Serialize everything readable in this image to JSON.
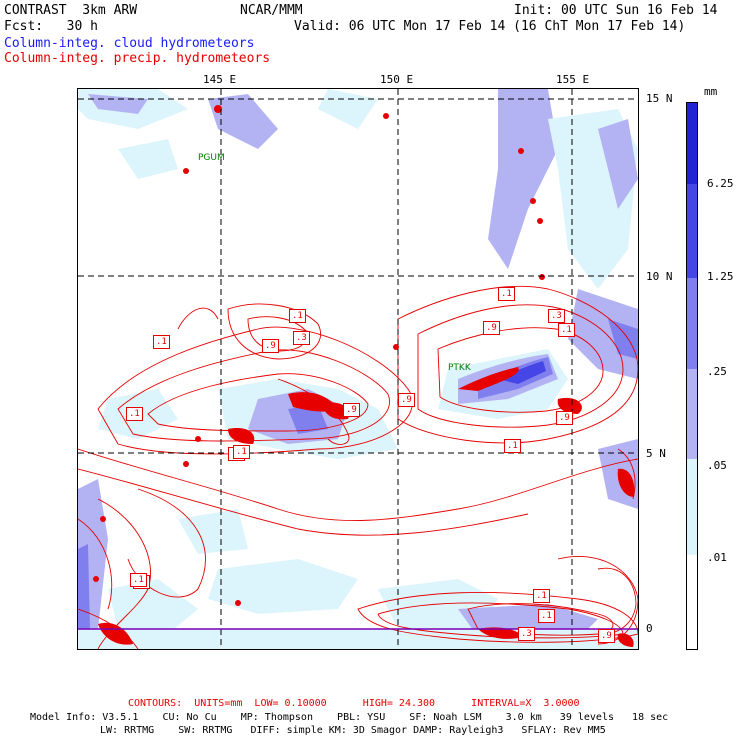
{
  "header": {
    "left_line1": "CONTRAST  3km ARW",
    "center_line1": "NCAR/MMM",
    "right_line1": "Init: 00 UTC Sun 16 Feb 14",
    "left_line2": "Fcst:   30 h",
    "right_line2": "Valid: 06 UTC Mon 17 Feb 14 (16 ChT Mon 17 Feb 14)",
    "field1": "Column-integ. cloud hydrometeors",
    "field2": "Column-integ. precip. hydrometeors"
  },
  "axes": {
    "lon_labels": [
      "145 E",
      "150 E",
      "155 E"
    ],
    "lat_labels": [
      "15 N",
      "10 N",
      "5 N",
      "0"
    ]
  },
  "colorbar": {
    "unit": "mm",
    "labels": [
      "6.25",
      "1.25",
      ".25",
      ".05",
      ".01"
    ],
    "colors": [
      "#2323d6",
      "#4646e6",
      "#7f7fee",
      "#b3b3f4",
      "#dcf4fc",
      "#ffffff"
    ]
  },
  "stations": [
    "PGUM",
    "PTKK"
  ],
  "contour_labels": [
    ".1",
    ".1",
    ".3",
    ".9",
    ".1",
    ".9",
    ".3",
    ".1",
    ".9",
    ".9",
    ".1",
    ".9",
    ".1",
    ".1",
    ".1",
    ".1",
    ".9",
    ".3",
    ".1",
    ".1",
    ".1"
  ],
  "footer": {
    "contours": "CONTOURS:  UNITS=mm  LOW= 0.10000      HIGH= 24.300      INTERVAL=X  3.0000",
    "model_line1": "Model Info: V3.5.1    CU: No Cu    MP: Thompson    PBL: YSU    SF: Noah LSM    3.0 km   39 levels   18 sec",
    "model_line2": "LW: RRTMG    SW: RRTMG   DIFF: simple KM: 3D Smagor DAMP: Rayleigh3   SFLAY: Rev MM5"
  }
}
